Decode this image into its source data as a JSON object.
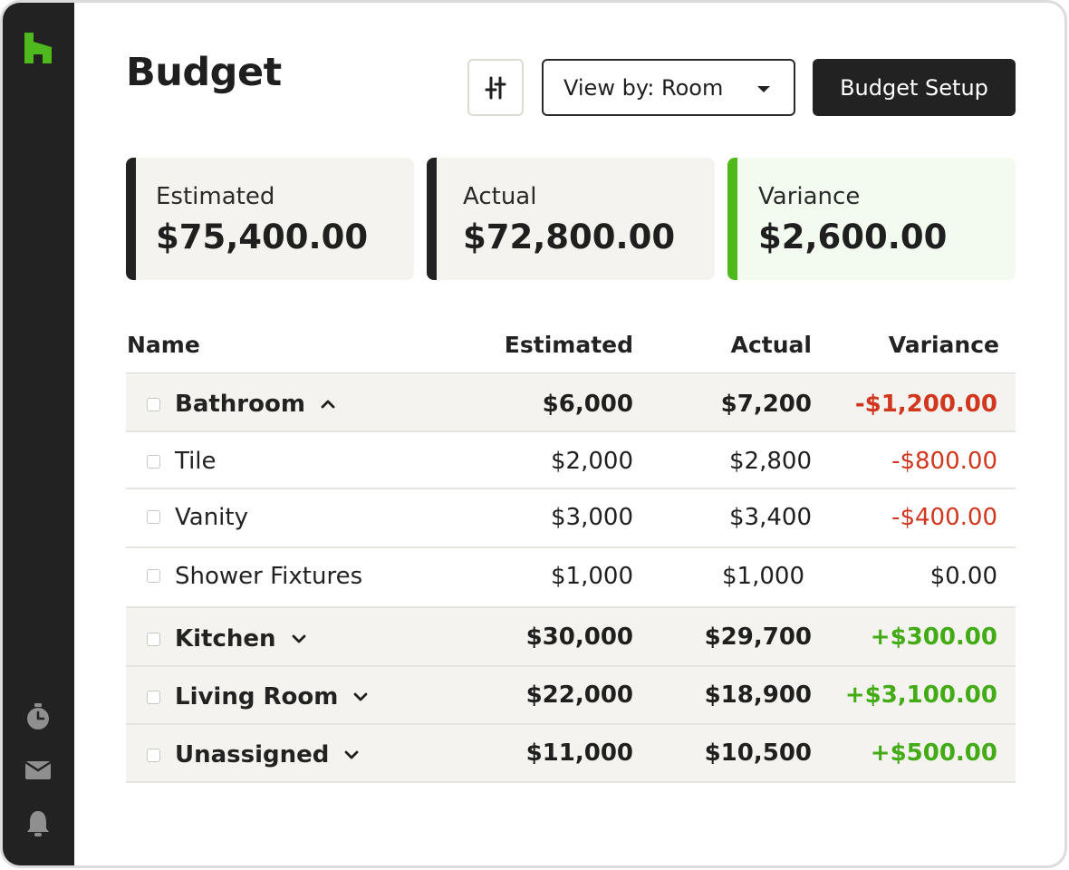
{
  "app": {
    "brand_color": "#4fb81d",
    "sidebar_icons": [
      "timer-icon",
      "inbox-icon",
      "bell-icon"
    ]
  },
  "header": {
    "title": "Budget",
    "view_by_label": "View by: Room",
    "setup_button": "Budget Setup"
  },
  "summary": {
    "estimated": {
      "label": "Estimated",
      "value": "$75,400.00"
    },
    "actual": {
      "label": "Actual",
      "value": "$72,800.00"
    },
    "variance": {
      "label": "Variance",
      "value": "$2,600.00"
    }
  },
  "table": {
    "columns": [
      "Name",
      "Estimated",
      "Actual",
      "Variance"
    ],
    "rows": [
      {
        "name": "Bathroom",
        "estimated": "$6,000",
        "actual": "$7,200",
        "variance": "-$1,200.00",
        "group": true,
        "expanded": true
      },
      {
        "name": "Tile",
        "estimated": "$2,000",
        "actual": "$2,800",
        "variance": "-$800.00",
        "group": false
      },
      {
        "name": "Vanity",
        "estimated": "$3,000",
        "actual": "$3,400",
        "variance": "-$400.00",
        "group": false
      },
      {
        "name": "Shower Fixtures",
        "estimated": "$1,000",
        "actual": "$1,000",
        "variance": "$0.00",
        "group": false
      },
      {
        "name": "Kitchen",
        "estimated": "$30,000",
        "actual": "$29,700",
        "variance": "+$300.00",
        "group": true,
        "expanded": false
      },
      {
        "name": "Living Room",
        "estimated": "$22,000",
        "actual": "$18,900",
        "variance": "+$3,100.00",
        "group": true,
        "expanded": false
      },
      {
        "name": "Unassigned",
        "estimated": "$11,000",
        "actual": "$10,500",
        "variance": "+$500.00",
        "group": true,
        "expanded": false
      }
    ]
  }
}
